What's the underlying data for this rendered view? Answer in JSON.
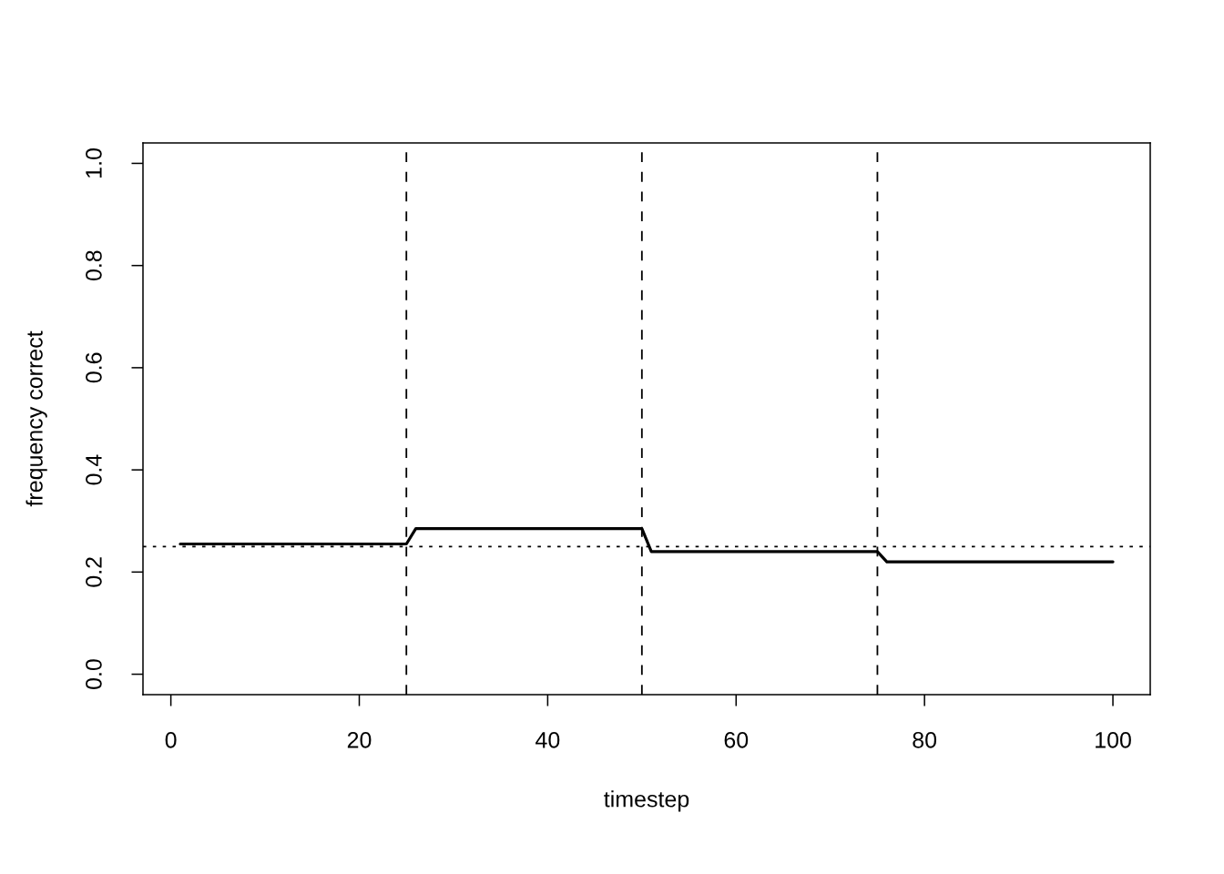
{
  "chart_data": {
    "type": "line",
    "xlabel": "timestep",
    "ylabel": "frequency correct",
    "series": [
      {
        "color": "#000000",
        "x": [
          1,
          25,
          26,
          50,
          51,
          75,
          76,
          100
        ],
        "values": [
          0.255,
          0.255,
          0.285,
          0.285,
          0.24,
          0.24,
          0.22,
          0.22
        ]
      }
    ],
    "xlim": [
      -2.96,
      103.96
    ],
    "ylim": [
      -0.04,
      1.04
    ],
    "xticks": [
      0,
      20,
      40,
      60,
      80,
      100
    ],
    "yticks": [
      {
        "value": 0,
        "label": "0.0"
      },
      0.2,
      0.4,
      0.6,
      0.8,
      {
        "value": 1,
        "label": "1.0"
      }
    ],
    "ref_lines": [
      {
        "axis": "x",
        "value": 25,
        "color": "#000000",
        "line_style": "dashed"
      },
      {
        "axis": "x",
        "value": 50,
        "color": "#000000",
        "line_style": "dashed"
      },
      {
        "axis": "x",
        "value": 75,
        "color": "#000000",
        "line_style": "dashed"
      },
      {
        "axis": "y",
        "value": 0.25,
        "color": "#000000",
        "line_style": "dotted"
      }
    ]
  }
}
